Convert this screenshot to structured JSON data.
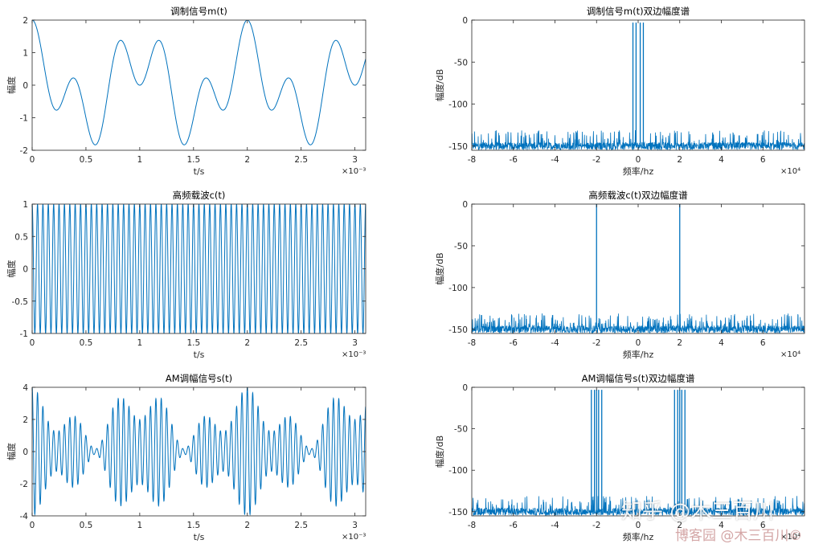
{
  "figure": {
    "background": "#ffffff",
    "line_color": "#0072BD",
    "axis_color": "#262626"
  },
  "chart_data": [
    {
      "type": "line",
      "title": "调制信号m(t)",
      "xlabel": "t/s",
      "ylabel": "幅度",
      "xlim": [
        0,
        0.0031
      ],
      "ylim": [
        -2,
        2
      ],
      "x_exponent_label": "×10⁻³",
      "x_ticks": [
        0,
        0.0005,
        0.001,
        0.0015,
        0.002,
        0.0025,
        0.003
      ],
      "x_tick_labels": [
        "0",
        "0.5",
        "1",
        "1.5",
        "2",
        "2.5",
        "3"
      ],
      "y_ticks": [
        -2,
        -1,
        0,
        1,
        2
      ],
      "y_tick_labels": [
        "-2",
        "-1",
        "0",
        "1",
        "2"
      ],
      "series": [
        {
          "kind": "message",
          "components": [
            {
              "amplitude": 1,
              "frequency_hz": 1000
            },
            {
              "amplitude": 1,
              "frequency_hz": 2500
            }
          ]
        }
      ]
    },
    {
      "type": "line",
      "title": "调制信号m(t)双边幅度谱",
      "xlabel": "频率/hz",
      "ylabel": "幅度/dB",
      "xlim": [
        -80000,
        80000
      ],
      "ylim": [
        -155,
        0
      ],
      "x_exponent_label": "×10⁴",
      "x_ticks": [
        -80000,
        -60000,
        -40000,
        -20000,
        0,
        20000,
        40000,
        60000
      ],
      "x_tick_labels": [
        "-8",
        "-6",
        "-4",
        "-2",
        "0",
        "2",
        "4",
        "6"
      ],
      "y_ticks": [
        -150,
        -100,
        -50,
        0
      ],
      "y_tick_labels": [
        "-150",
        "-100",
        "-50",
        "0"
      ],
      "noise_floor_db": -150,
      "spectral_lines_hz": [
        -2500,
        -1000,
        1000,
        2500
      ],
      "line_level_db": -3
    },
    {
      "type": "line",
      "title": "高频载波c(t)",
      "xlabel": "t/s",
      "ylabel": "幅度",
      "xlim": [
        0,
        0.0031
      ],
      "ylim": [
        -1,
        1
      ],
      "x_exponent_label": "×10⁻³",
      "x_ticks": [
        0,
        0.0005,
        0.001,
        0.0015,
        0.002,
        0.0025,
        0.003
      ],
      "x_tick_labels": [
        "0",
        "0.5",
        "1",
        "1.5",
        "2",
        "2.5",
        "3"
      ],
      "y_ticks": [
        -1,
        -0.5,
        0,
        0.5,
        1
      ],
      "y_tick_labels": [
        "-1",
        "-0.5",
        "0",
        "0.5",
        "1"
      ],
      "series": [
        {
          "kind": "carrier",
          "components": [
            {
              "amplitude": 1,
              "frequency_hz": 20000
            }
          ]
        }
      ]
    },
    {
      "type": "line",
      "title": "高频载波c(t)双边幅度谱",
      "xlabel": "频率/hz",
      "ylabel": "幅度/dB",
      "xlim": [
        -80000,
        80000
      ],
      "ylim": [
        -155,
        0
      ],
      "x_exponent_label": "×10⁴",
      "x_ticks": [
        -80000,
        -60000,
        -40000,
        -20000,
        0,
        20000,
        40000,
        60000
      ],
      "x_tick_labels": [
        "-8",
        "-6",
        "-4",
        "-2",
        "0",
        "2",
        "4",
        "6"
      ],
      "y_ticks": [
        -150,
        -100,
        -50,
        0
      ],
      "y_tick_labels": [
        "-150",
        "-100",
        "-50",
        "0"
      ],
      "noise_floor_db": -150,
      "spectral_lines_hz": [
        -20000,
        20000
      ],
      "line_level_db": 0
    },
    {
      "type": "line",
      "title": "AM调幅信号s(t)",
      "xlabel": "t/s",
      "ylabel": "幅度",
      "xlim": [
        0,
        0.0031
      ],
      "ylim": [
        -4,
        4
      ],
      "x_exponent_label": "×10⁻³",
      "x_ticks": [
        0,
        0.0005,
        0.001,
        0.0015,
        0.002,
        0.0025,
        0.003
      ],
      "x_tick_labels": [
        "0",
        "0.5",
        "1",
        "1.5",
        "2",
        "2.5",
        "3"
      ],
      "y_ticks": [
        -4,
        -2,
        0,
        2,
        4
      ],
      "y_tick_labels": [
        "-4",
        "-2",
        "0",
        "2",
        "4"
      ],
      "series": [
        {
          "kind": "am",
          "dc_offset": 2,
          "carrier_hz": 20000,
          "components": [
            {
              "amplitude": 1,
              "frequency_hz": 1000
            },
            {
              "amplitude": 1,
              "frequency_hz": 2500
            }
          ]
        }
      ]
    },
    {
      "type": "line",
      "title": "AM调幅信号s(t)双边幅度谱",
      "xlabel": "频率/hz",
      "ylabel": "幅度/dB",
      "xlim": [
        -80000,
        80000
      ],
      "ylim": [
        -155,
        0
      ],
      "x_exponent_label": "×10⁴",
      "x_ticks": [
        -80000,
        -60000,
        -40000,
        -20000,
        0,
        20000,
        40000,
        60000
      ],
      "x_tick_labels": [
        "-8",
        "-6",
        "-4",
        "-2",
        "0",
        "2",
        "4",
        "6"
      ],
      "y_ticks": [
        -150,
        -100,
        -50,
        0
      ],
      "y_tick_labels": [
        "-150",
        "-100",
        "-50",
        "0"
      ],
      "noise_floor_db": -150,
      "spectral_lines_hz": [
        -22500,
        -21000,
        -20000,
        -19000,
        -17500,
        17500,
        19000,
        20000,
        21000,
        22500
      ],
      "line_level_db": -3
    }
  ],
  "watermark": {
    "primary": "知乎 @木三百川",
    "secondary": "博客园 @木三百川©"
  }
}
